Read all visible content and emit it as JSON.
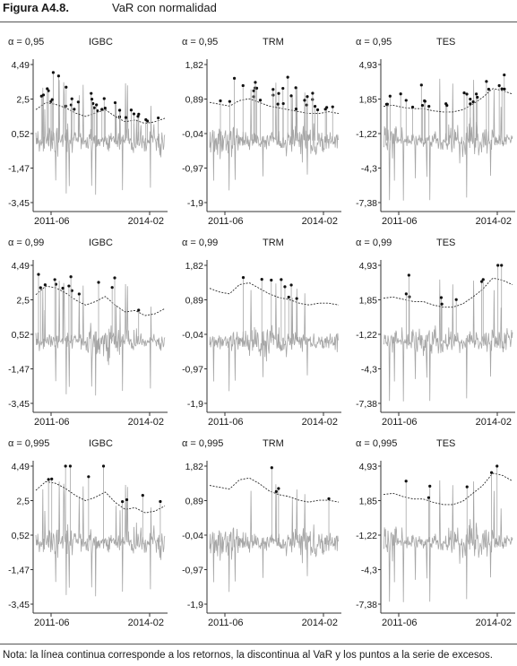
{
  "header": {
    "figure_label": "Figura A4.8.",
    "figure_title": "VaR con normalidad"
  },
  "note": "Nota: la línea continua corresponde a los retornos, la discontinua al VaR y los puntos a la serie de excesos.",
  "colors": {
    "returns": "#a6a6a6",
    "var": "#2b2b2b",
    "exceedances": "#111111",
    "axis": "#333333"
  },
  "chart_data": [
    {
      "type": "line",
      "alpha_label": "α = 0,95",
      "series_title": "IGBC",
      "x_start": "2011-06",
      "x_end": "2014-02",
      "yticks": [
        "4,49",
        "2,5",
        "0,52",
        "-1,47",
        "-3,45"
      ],
      "ylim": [
        -3.45,
        4.49
      ],
      "series": [
        {
          "name": "Retornos",
          "style": "solid",
          "range": [
            -3.4,
            4.4
          ]
        },
        {
          "name": "VaR",
          "style": "dashed",
          "values": [
            1.9,
            2.3,
            2.2,
            2.0,
            1.7,
            1.5,
            1.7,
            1.9,
            1.5,
            1.2,
            1.3,
            1.1,
            1.2,
            1.4
          ]
        },
        {
          "name": "Excesos",
          "style": "points",
          "count": 34
        }
      ]
    },
    {
      "type": "line",
      "alpha_label": "α = 0,95",
      "series_title": "TRM",
      "x_start": "2011-06",
      "x_end": "2014-02",
      "yticks": [
        "1,82",
        "0,89",
        "-0,04",
        "-0,97",
        "-1,9"
      ],
      "ylim": [
        -1.9,
        1.82
      ],
      "series": [
        {
          "name": "Retornos",
          "style": "solid",
          "range": [
            -1.8,
            1.7
          ]
        },
        {
          "name": "VaR",
          "style": "dashed",
          "values": [
            0.8,
            0.75,
            0.7,
            0.85,
            0.9,
            0.8,
            0.7,
            0.65,
            0.6,
            0.55,
            0.5,
            0.5,
            0.55,
            0.5
          ]
        },
        {
          "name": "Excesos",
          "style": "points",
          "count": 30
        }
      ]
    },
    {
      "type": "line",
      "alpha_label": "α = 0,95",
      "series_title": "TES",
      "x_start": "2011-06",
      "x_end": "2014-02",
      "yticks": [
        "4,93",
        "1,85",
        "-1,22",
        "-4,3",
        "-7,38"
      ],
      "ylim": [
        -7.38,
        4.93
      ],
      "series": [
        {
          "name": "Retornos",
          "style": "solid",
          "range": [
            -7.2,
            4.6
          ]
        },
        {
          "name": "VaR",
          "style": "dashed",
          "values": [
            1.2,
            1.3,
            1.1,
            1.0,
            1.0,
            0.8,
            0.7,
            0.7,
            0.9,
            1.4,
            2.0,
            2.8,
            2.6,
            2.3
          ]
        },
        {
          "name": "Excesos",
          "style": "points",
          "count": 26
        }
      ]
    },
    {
      "type": "line",
      "alpha_label": "α = 0,99",
      "series_title": "IGBC",
      "x_start": "2011-06",
      "x_end": "2014-02",
      "yticks": [
        "4,49",
        "2,5",
        "0,52",
        "-1,47",
        "-3,45"
      ],
      "ylim": [
        -3.45,
        4.49
      ],
      "series": [
        {
          "name": "Retornos",
          "style": "solid",
          "range": [
            -3.4,
            4.4
          ]
        },
        {
          "name": "VaR",
          "style": "dashed",
          "values": [
            2.8,
            3.3,
            3.2,
            2.9,
            2.5,
            2.2,
            2.4,
            2.7,
            2.2,
            1.8,
            1.9,
            1.6,
            1.7,
            2.0
          ]
        },
        {
          "name": "Excesos",
          "style": "points",
          "count": 14
        }
      ]
    },
    {
      "type": "line",
      "alpha_label": "α = 0,99",
      "series_title": "TRM",
      "x_start": "2011-06",
      "x_end": "2014-02",
      "yticks": [
        "1,82",
        "0,89",
        "-0,04",
        "-0,97",
        "-1,9"
      ],
      "ylim": [
        -1.9,
        1.82
      ],
      "series": [
        {
          "name": "Retornos",
          "style": "solid",
          "range": [
            -1.8,
            1.7
          ]
        },
        {
          "name": "VaR",
          "style": "dashed",
          "values": [
            1.2,
            1.1,
            1.05,
            1.3,
            1.35,
            1.2,
            1.05,
            0.95,
            0.9,
            0.8,
            0.75,
            0.8,
            0.8,
            0.75
          ]
        },
        {
          "name": "Excesos",
          "style": "points",
          "count": 8
        }
      ]
    },
    {
      "type": "line",
      "alpha_label": "α = 0,99",
      "series_title": "TES",
      "x_start": "2011-06",
      "x_end": "2014-02",
      "yticks": [
        "4,93",
        "1,85",
        "-1,22",
        "-4,3",
        "-7,38"
      ],
      "ylim": [
        -7.38,
        4.93
      ],
      "series": [
        {
          "name": "Retornos",
          "style": "solid",
          "range": [
            -7.2,
            4.6
          ]
        },
        {
          "name": "VaR",
          "style": "dashed",
          "values": [
            2.0,
            2.1,
            1.9,
            1.7,
            1.7,
            1.4,
            1.2,
            1.2,
            1.5,
            2.1,
            2.8,
            3.8,
            3.6,
            3.2
          ]
        },
        {
          "name": "Excesos",
          "style": "points",
          "count": 10
        }
      ]
    },
    {
      "type": "line",
      "alpha_label": "α = 0,995",
      "series_title": "IGBC",
      "x_start": "2011-06",
      "x_end": "2014-02",
      "yticks": [
        "4,49",
        "2,5",
        "0,52",
        "-1,47",
        "-3,45"
      ],
      "ylim": [
        -3.45,
        4.49
      ],
      "series": [
        {
          "name": "Retornos",
          "style": "solid",
          "range": [
            -3.4,
            4.4
          ]
        },
        {
          "name": "VaR",
          "style": "dashed",
          "values": [
            3.1,
            3.6,
            3.5,
            3.2,
            2.8,
            2.5,
            2.7,
            3.0,
            2.4,
            2.0,
            2.1,
            1.8,
            1.9,
            2.2
          ]
        },
        {
          "name": "Excesos",
          "style": "points",
          "count": 10
        }
      ]
    },
    {
      "type": "line",
      "alpha_label": "α = 0,995",
      "series_title": "TRM",
      "x_start": "2011-06",
      "x_end": "2014-02",
      "yticks": [
        "1,82",
        "0,89",
        "-0,04",
        "-0,97",
        "-1,9"
      ],
      "ylim": [
        -1.9,
        1.82
      ],
      "series": [
        {
          "name": "Retornos",
          "style": "solid",
          "range": [
            -1.8,
            1.7
          ]
        },
        {
          "name": "VaR",
          "style": "dashed",
          "values": [
            1.3,
            1.25,
            1.2,
            1.45,
            1.5,
            1.35,
            1.15,
            1.05,
            1.0,
            0.9,
            0.85,
            0.9,
            0.9,
            0.85
          ]
        },
        {
          "name": "Excesos",
          "style": "points",
          "count": 4
        }
      ]
    },
    {
      "type": "line",
      "alpha_label": "α = 0,995",
      "series_title": "TES",
      "x_start": "2011-06",
      "x_end": "2014-02",
      "yticks": [
        "4,93",
        "1,85",
        "-1,22",
        "-4,3",
        "-7,38"
      ],
      "ylim": [
        -7.38,
        4.93
      ],
      "series": [
        {
          "name": "Retornos",
          "style": "solid",
          "range": [
            -7.2,
            4.6
          ]
        },
        {
          "name": "VaR",
          "style": "dashed",
          "values": [
            2.4,
            2.5,
            2.2,
            2.0,
            2.0,
            1.7,
            1.5,
            1.5,
            1.8,
            2.5,
            3.2,
            4.3,
            4.1,
            3.6
          ]
        },
        {
          "name": "Excesos",
          "style": "points",
          "count": 6
        }
      ]
    }
  ]
}
